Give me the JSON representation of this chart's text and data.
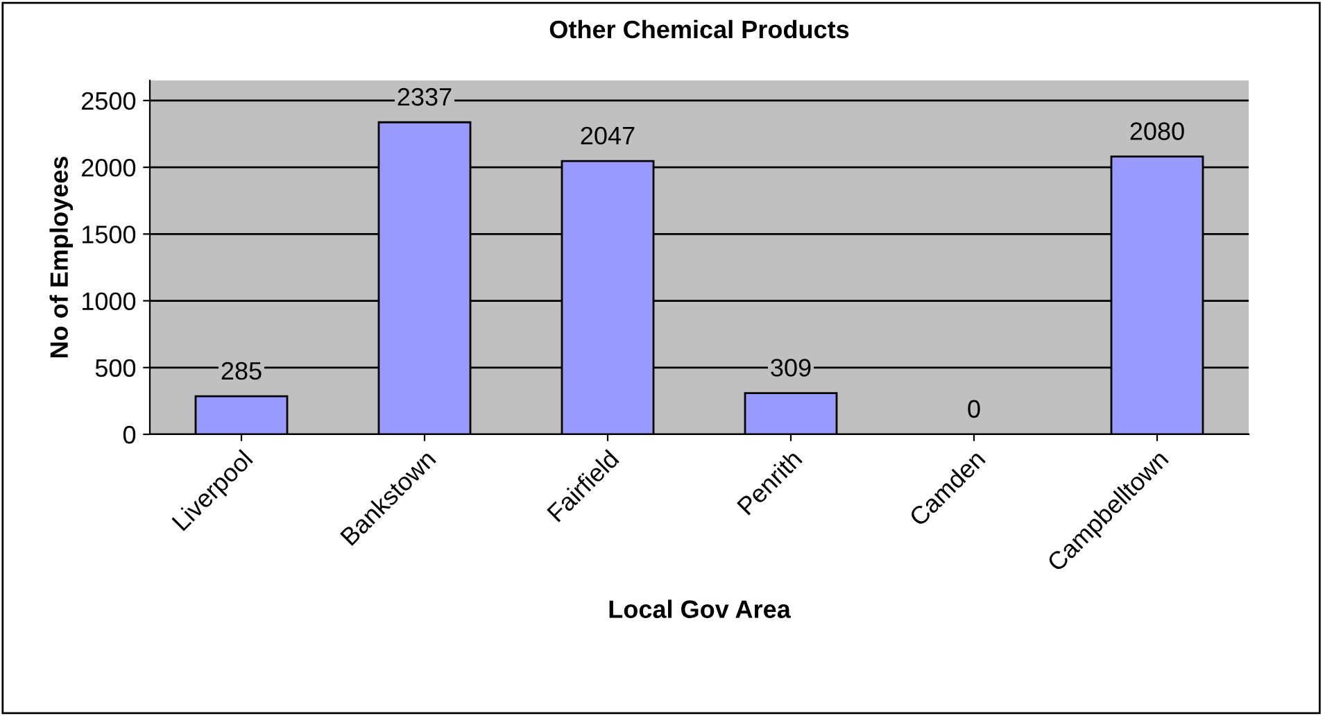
{
  "chart_data": {
    "type": "bar",
    "title": "Other Chemical Products",
    "xlabel": "Local Gov Area",
    "ylabel": "No of Employees",
    "categories": [
      "Liverpool",
      "Bankstown",
      "Fairfield",
      "Penrith",
      "Camden",
      "Campbelltown"
    ],
    "values": [
      285,
      2337,
      2047,
      309,
      0,
      2080
    ],
    "color": "#9999ff",
    "ylim": [
      0,
      2650
    ],
    "yticks": [
      0,
      500,
      1000,
      1500,
      2000,
      2500
    ],
    "grid": "y",
    "data_labels": true
  }
}
